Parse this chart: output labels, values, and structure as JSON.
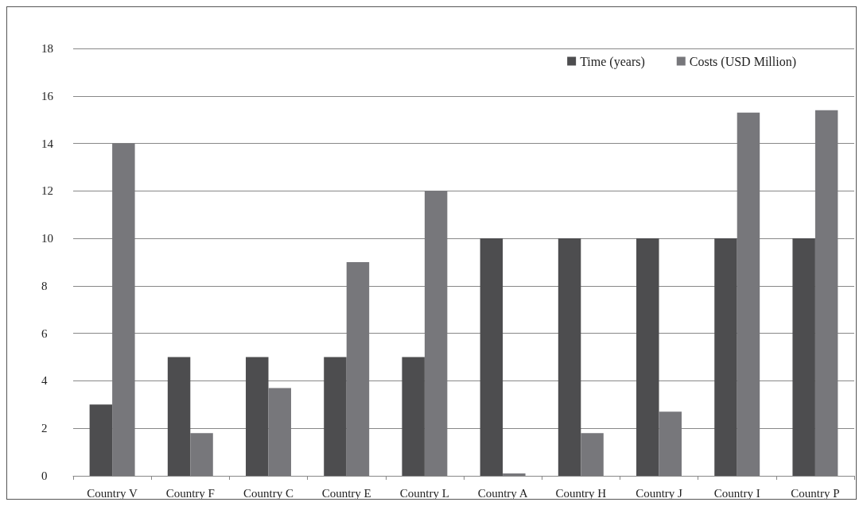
{
  "chart_data": {
    "type": "bar",
    "categories": [
      "Country V",
      "Country F",
      "Country C",
      "Country E",
      "Country L",
      "Country A",
      "Country H",
      "Country J",
      "Country I",
      "Country P"
    ],
    "series": [
      {
        "name": "Time (years)",
        "color": "#4d4d4f",
        "values": [
          3,
          5,
          5,
          5,
          5,
          10,
          10,
          10,
          10,
          10
        ]
      },
      {
        "name": "Costs (USD Million)",
        "color": "#77777b",
        "values": [
          14,
          1.8,
          3.7,
          9,
          12,
          0.1,
          1.8,
          2.7,
          15.3,
          15.4
        ]
      }
    ],
    "ylim": [
      0,
      18
    ],
    "yticks": [
      0,
      2,
      4,
      6,
      8,
      10,
      12,
      14,
      16,
      18
    ],
    "grid": "y",
    "legend": "top right"
  }
}
